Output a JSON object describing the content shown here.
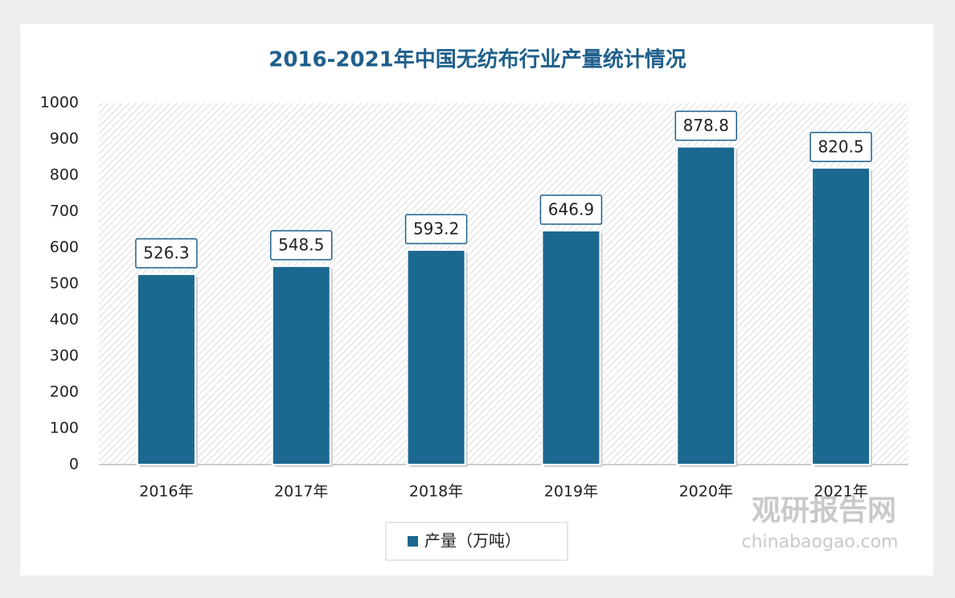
{
  "chart_data": {
    "type": "bar",
    "title": "2016-2021年中国无纺布行业产量统计情况",
    "categories": [
      "2016年",
      "2017年",
      "2018年",
      "2019年",
      "2020年",
      "2021年"
    ],
    "series": [
      {
        "name": "产量（万吨）",
        "color": "#1b6890",
        "values": [
          526.3,
          548.5,
          593.2,
          646.9,
          878.8,
          820.5
        ]
      }
    ],
    "ylim": [
      0,
      1000
    ],
    "yticks": [
      0,
      100,
      200,
      300,
      400,
      500,
      600,
      700,
      800,
      900,
      1000
    ],
    "legend": "bottom",
    "grid": false
  },
  "watermark": {
    "name": "观研报告网",
    "url": "chinabaogao.com"
  }
}
